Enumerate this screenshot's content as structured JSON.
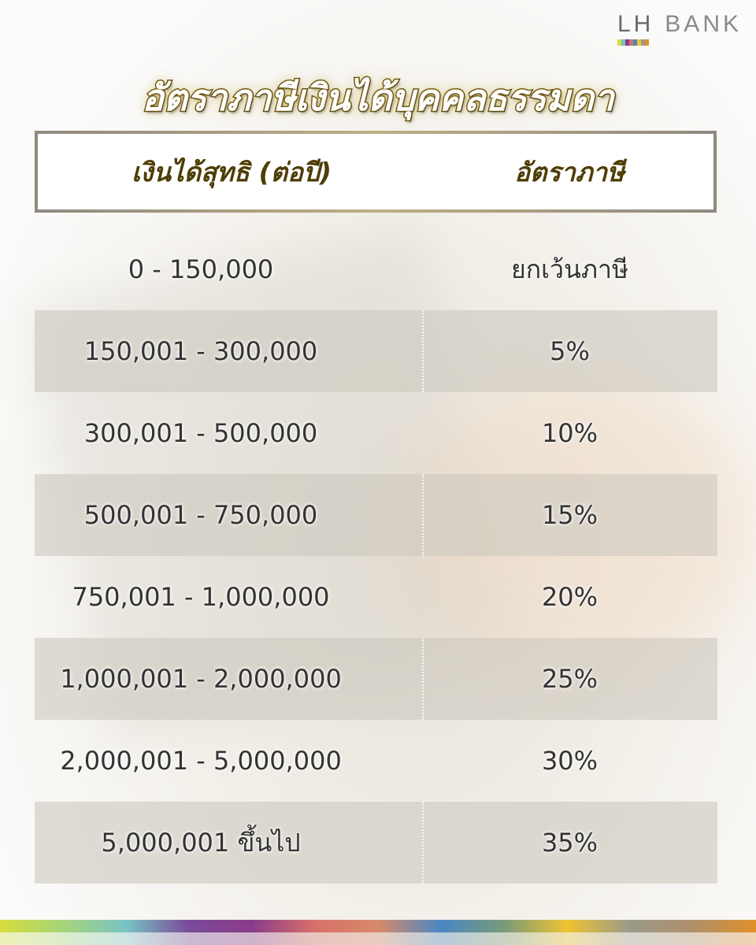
{
  "logo": {
    "text_lh": "LH",
    "text_bank": "BANK",
    "colors": [
      "#d8dc3c",
      "#78c4c4",
      "#8a3c8a",
      "#d8706a",
      "#4a88c4",
      "#eec432",
      "#9a9a8a",
      "#e0902a"
    ]
  },
  "title": "อัตราภาษีเงินได้บุคคลธรรมดา",
  "table": {
    "headers": [
      "เงินได้สุทธิ (ต่อปี)",
      "อัตราภาษี"
    ],
    "rows": [
      {
        "range": "0 - 150,000",
        "rate": "ยกเว้นภาษี"
      },
      {
        "range": "150,001 - 300,000",
        "rate": "5%"
      },
      {
        "range": "300,001 - 500,000",
        "rate": "10%"
      },
      {
        "range": "500,001 - 750,000",
        "rate": "15%"
      },
      {
        "range": "750,001 - 1,000,000",
        "rate": "20%"
      },
      {
        "range": "1,000,001 - 2,000,000",
        "rate": "25%"
      },
      {
        "range": "2,000,001 - 5,000,000",
        "rate": "30%"
      },
      {
        "range": "5,000,001 ขึ้นไป",
        "rate": "35%"
      }
    ]
  },
  "colors": {
    "title_stroke": "#5e4b06",
    "header_text": "#4e3d05"
  }
}
